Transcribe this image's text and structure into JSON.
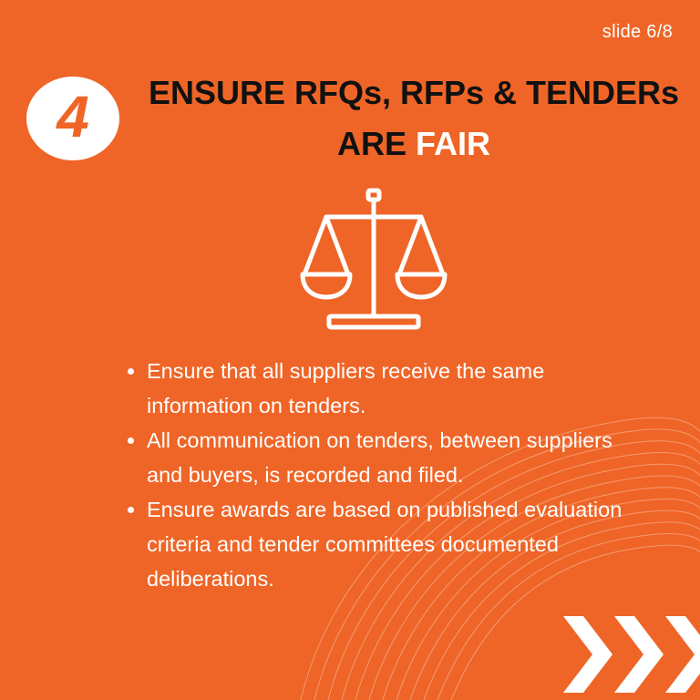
{
  "slide": {
    "counter": "slide 6/8",
    "number": "4",
    "title_line1": "ENSURE RFQs, RFPs & TENDERs",
    "title_line2_dark": "ARE",
    "title_line2_highlight": "FAIR",
    "icon": "balance-scale-icon",
    "bullets": [
      "Ensure that all suppliers receive the same information on tenders.",
      "All communication on tenders, between suppliers and buyers, is recorded and filed.",
      "Ensure awards are based on published evaluation criteria and tender committees documented deliberations."
    ],
    "decoration": "triple-chevron-icon"
  },
  "colors": {
    "background": "#ef6527",
    "title": "#111111",
    "highlight": "#ffffff",
    "text": "#ffffff"
  }
}
